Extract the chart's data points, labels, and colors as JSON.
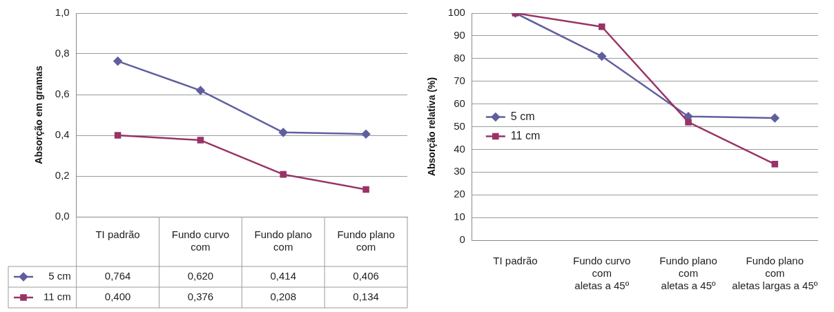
{
  "chart_data": [
    {
      "type": "line",
      "ylabel": "Absorção em gramas",
      "categories": [
        "TI padrão",
        "Fundo curvo\ncom",
        "Fundo plano\ncom",
        "Fundo plano\ncom"
      ],
      "series": [
        {
          "name": "5 cm",
          "color": "#5f5f9f",
          "marker": "diamond",
          "values": [
            0.764,
            0.62,
            0.414,
            0.406
          ],
          "value_labels": [
            "0,764",
            "0,620",
            "0,414",
            "0,406"
          ]
        },
        {
          "name": "11 cm",
          "color": "#993366",
          "marker": "square",
          "values": [
            0.4,
            0.376,
            0.208,
            0.134
          ],
          "value_labels": [
            "0,400",
            "0,376",
            "0,208",
            "0,134"
          ]
        }
      ],
      "ylim": [
        0,
        1
      ],
      "yticks": [
        {
          "value": 0,
          "label": "0,0"
        },
        {
          "value": 0.2,
          "label": "0,2"
        },
        {
          "value": 0.4,
          "label": "0,4"
        },
        {
          "value": 0.6,
          "label": "0,6"
        },
        {
          "value": 0.8,
          "label": "0,8"
        },
        {
          "value": 1,
          "label": "1,0"
        }
      ],
      "grid": "y",
      "legend": "bottom left"
    },
    {
      "type": "line",
      "ylabel": "Absorção relativa (%)",
      "categories": [
        "TI padrão",
        "Fundo curvo\ncom\naletas a 45º",
        "Fundo plano\ncom\naletas a 45º",
        "Fundo plano\ncom\naletas largas a 45º"
      ],
      "series": [
        {
          "name": "5 cm",
          "color": "#5f5f9f",
          "marker": "diamond",
          "values": [
            100,
            81,
            54.5,
            53.8
          ]
        },
        {
          "name": "11 cm",
          "color": "#993366",
          "marker": "square",
          "values": [
            100,
            94,
            52,
            33.5
          ]
        }
      ],
      "ylim": [
        0,
        100
      ],
      "yticks": [
        0,
        10,
        20,
        30,
        40,
        50,
        60,
        70,
        80,
        90,
        100
      ],
      "grid": "y",
      "legend": "left"
    }
  ]
}
